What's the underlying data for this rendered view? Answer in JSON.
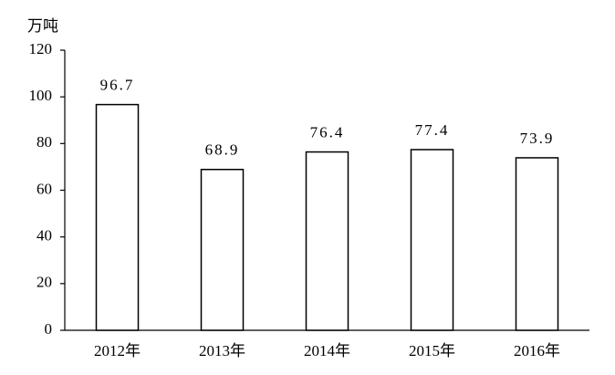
{
  "chart_data": {
    "type": "bar",
    "y_label": "万吨",
    "categories": [
      "2012年",
      "2013年",
      "2014年",
      "2015年",
      "2016年"
    ],
    "values": [
      96.7,
      68.9,
      76.4,
      77.4,
      73.9
    ],
    "color": "#ffffff",
    "edge_color": "#000000",
    "ylim": [
      0,
      120
    ],
    "yticks": [
      0,
      20,
      40,
      60,
      80,
      100,
      120
    ],
    "grid": false
  }
}
